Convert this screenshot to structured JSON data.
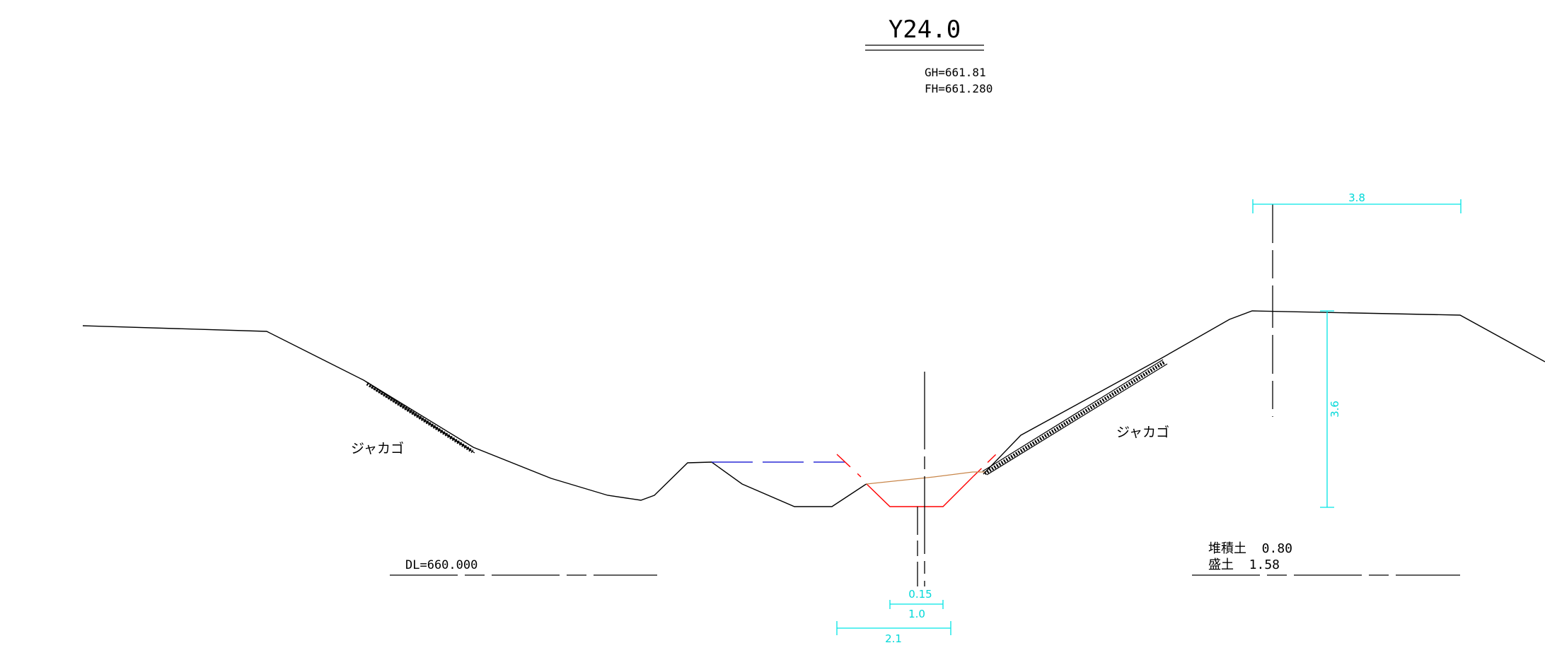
{
  "title": "Y24.0",
  "gh_label": "GH=661.81",
  "fh_label": "FH=661.280",
  "datum_label": "DL=660.000",
  "left_slope_label": "ジャカゴ",
  "right_slope_label": "ジャカゴ",
  "quantities": {
    "sediment": "堆積土  0.80",
    "fill": "盛土  1.58"
  },
  "dimensions": {
    "top_right_width": "3.8",
    "right_height": "3.6",
    "channel_0_15": "0.15",
    "channel_1_0": "1.0",
    "channel_2_1": "2.1"
  },
  "colors": {
    "ground": "#000000",
    "dimension": "#00e5e5",
    "design_section": "#ff0000",
    "water_level": "#2b2bd6",
    "sediment_line": "#c8864a"
  }
}
